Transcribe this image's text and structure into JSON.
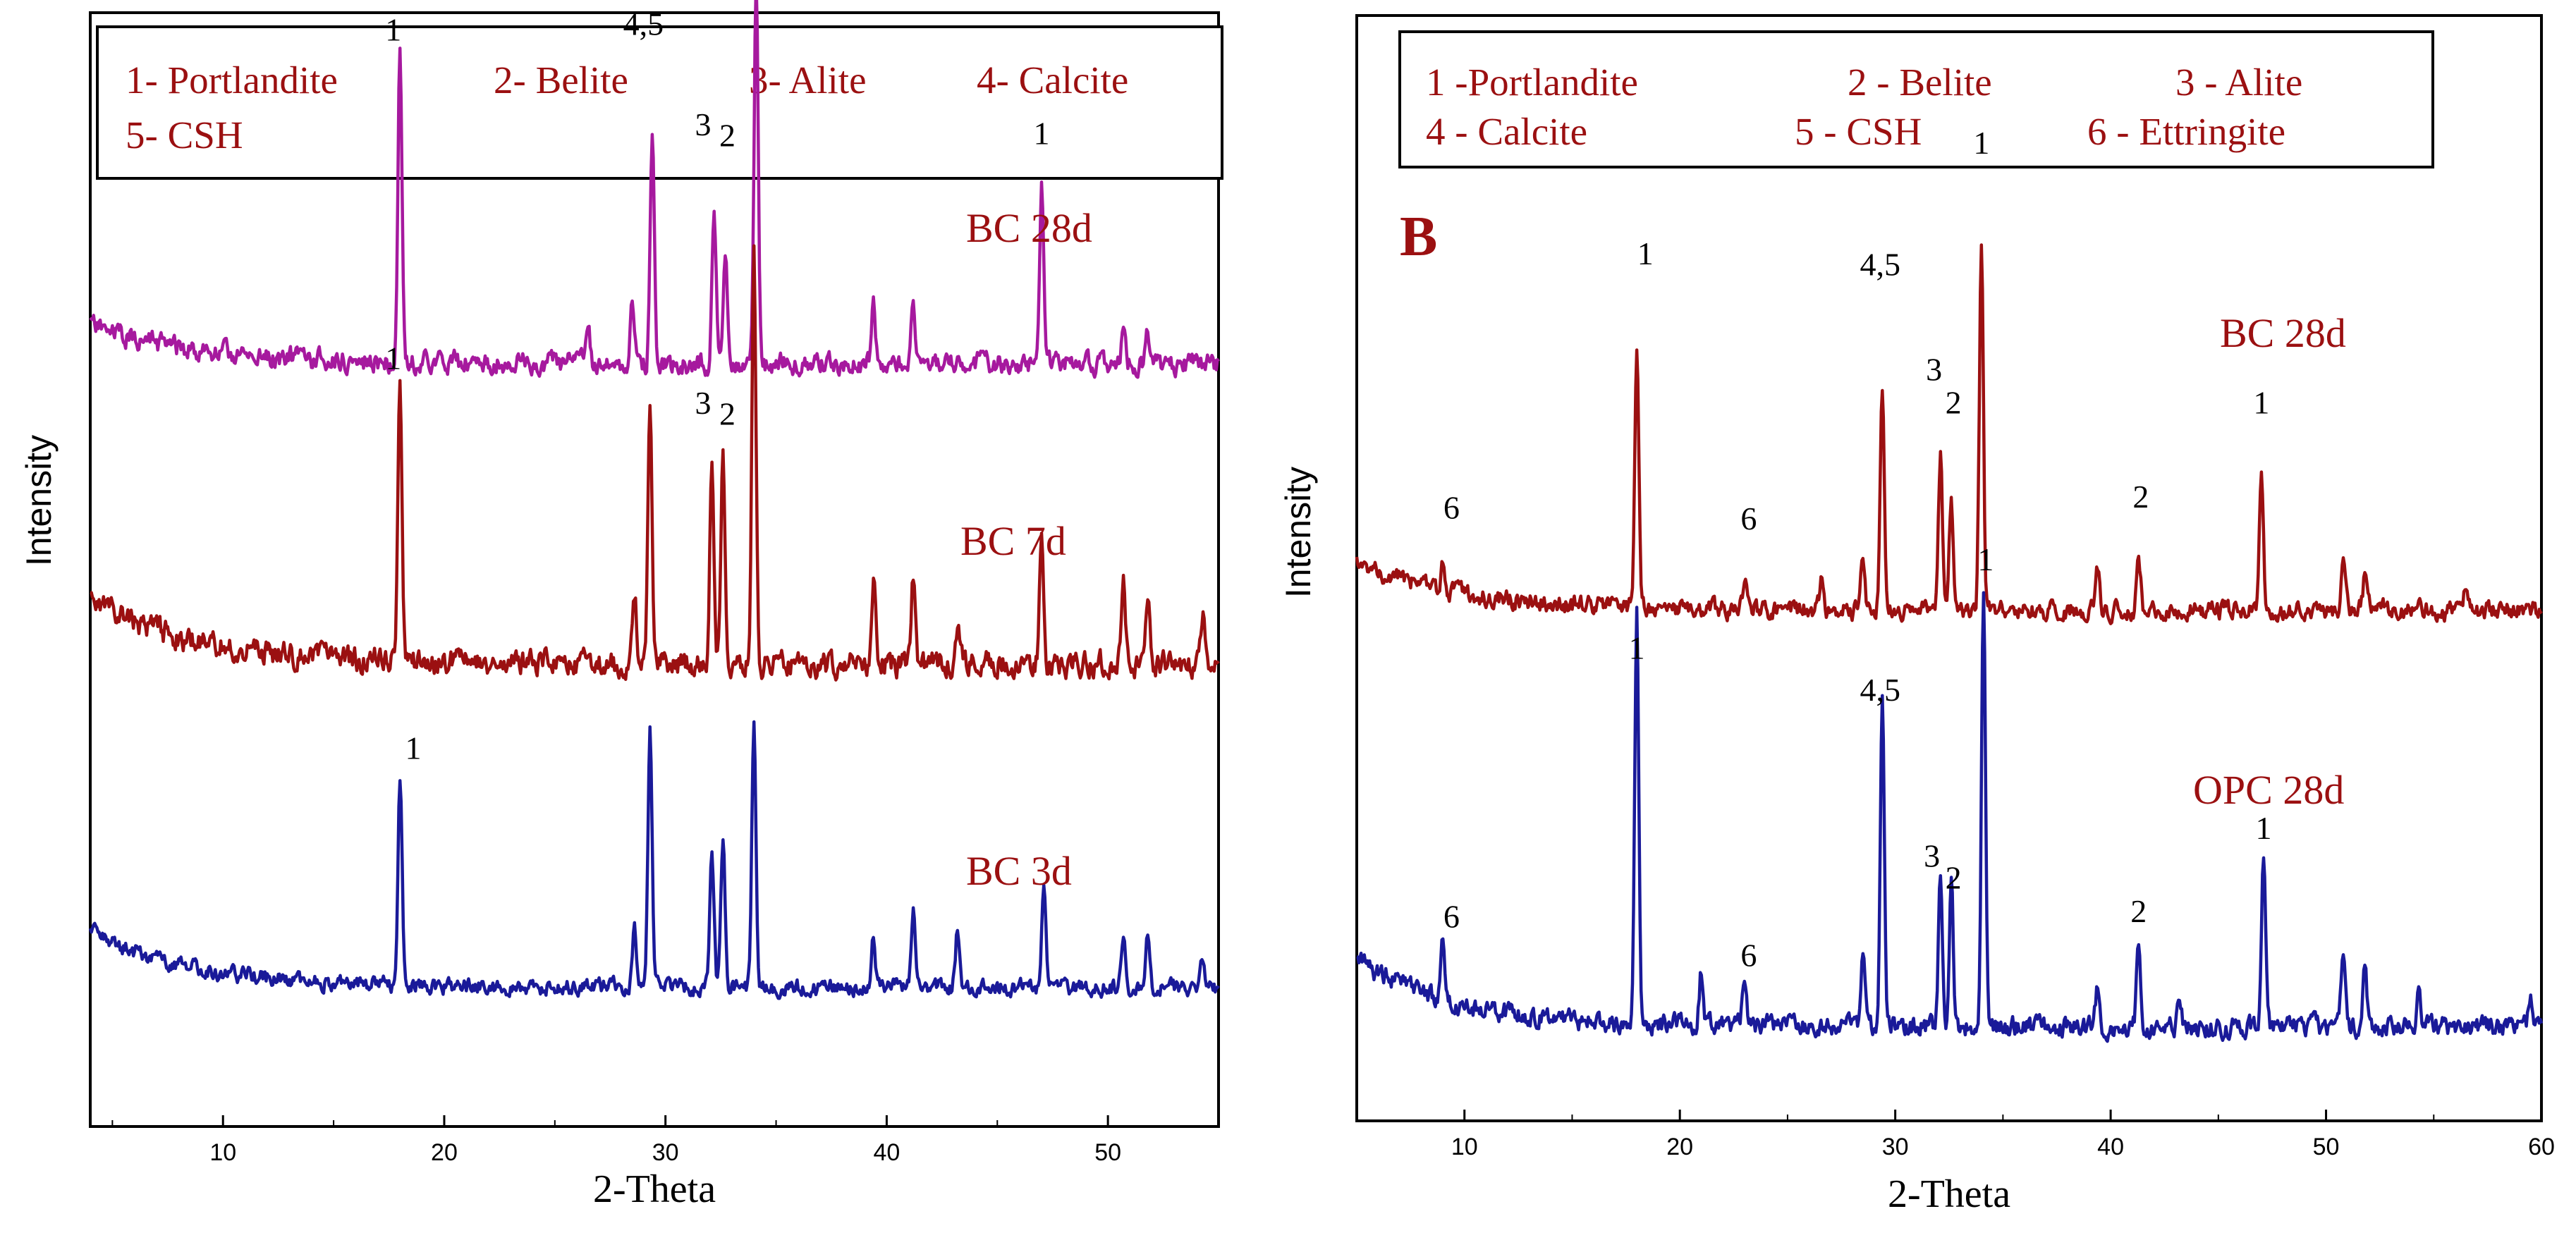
{
  "colors": {
    "purple": "#A6199E",
    "red": "#9B1011",
    "blue": "#1A1A99",
    "text_red": "#9B1011",
    "black": "#000000"
  },
  "chart_data": [
    {
      "type": "line",
      "panel": "A",
      "title": "",
      "xlabel": "2-Theta",
      "ylabel": "Intensity",
      "xlim": [
        4,
        55
      ],
      "xticks": [
        10,
        20,
        30,
        40,
        50
      ],
      "xtick_labels": [
        "10",
        "20",
        "30",
        "40",
        "50"
      ],
      "legend": [
        "1- Portlandite",
        "2- Belite",
        "3- Alite",
        "4- Calcite",
        "5- CSH"
      ],
      "series": [
        {
          "name": "BC 28d",
          "color": "purple",
          "baseline": 0.315,
          "start_rise": 0.035,
          "noise": 0.017,
          "seed": 11,
          "peaks": [
            [
              18.0,
              0.28
            ],
            [
              26.5,
              0.04
            ],
            [
              28.5,
              0.05
            ],
            [
              29.4,
              0.21
            ],
            [
              32.2,
              0.14
            ],
            [
              32.7,
              0.11
            ],
            [
              34.1,
              0.34
            ],
            [
              39.4,
              0.05
            ],
            [
              41.2,
              0.055
            ],
            [
              47.0,
              0.16
            ],
            [
              50.7,
              0.04
            ],
            [
              51.8,
              0.025
            ]
          ]
        },
        {
          "name": "BC 7d",
          "color": "red",
          "baseline": 0.585,
          "start_rise": 0.06,
          "noise": 0.02,
          "seed": 23,
          "peaks": [
            [
              18.0,
              0.25
            ],
            [
              28.6,
              0.06
            ],
            [
              29.3,
              0.22
            ],
            [
              32.1,
              0.18
            ],
            [
              32.6,
              0.19
            ],
            [
              34.0,
              0.37
            ],
            [
              39.4,
              0.08
            ],
            [
              41.2,
              0.08
            ],
            [
              43.2,
              0.03
            ],
            [
              47.0,
              0.12
            ],
            [
              50.7,
              0.08
            ],
            [
              51.8,
              0.05
            ],
            [
              54.3,
              0.04
            ]
          ]
        },
        {
          "name": "BC 3d",
          "color": "blue",
          "baseline": 0.875,
          "start_rise": 0.05,
          "noise": 0.013,
          "seed": 37,
          "peaks": [
            [
              18.0,
              0.19
            ],
            [
              28.6,
              0.05
            ],
            [
              29.3,
              0.23
            ],
            [
              32.1,
              0.12
            ],
            [
              32.6,
              0.13
            ],
            [
              34.0,
              0.24
            ],
            [
              39.4,
              0.05
            ],
            [
              41.2,
              0.07
            ],
            [
              43.2,
              0.05
            ],
            [
              47.1,
              0.1
            ],
            [
              50.7,
              0.05
            ],
            [
              51.8,
              0.05
            ],
            [
              54.3,
              0.025
            ]
          ]
        }
      ],
      "peak_labels": [
        {
          "text": "1",
          "x": 17.7,
          "y": 0.025,
          "series": "BC 28d"
        },
        {
          "text": "4,5",
          "x": 29.0,
          "y": 0.02,
          "series": "BC 28d"
        },
        {
          "text": "3",
          "x": 31.7,
          "y": 0.11,
          "series": "BC 28d"
        },
        {
          "text": "2",
          "x": 32.8,
          "y": 0.12,
          "series": "BC 28d"
        },
        {
          "text": "1",
          "x": 47.0,
          "y": 0.118,
          "series": "BC 28d"
        },
        {
          "text": "1",
          "x": 17.7,
          "y": 0.32,
          "series": "BC 7d"
        },
        {
          "text": "3",
          "x": 31.7,
          "y": 0.36,
          "series": "BC 7d"
        },
        {
          "text": "2",
          "x": 32.8,
          "y": 0.37,
          "series": "BC 7d"
        },
        {
          "text": "1",
          "x": 18.6,
          "y": 0.67,
          "series": "BC 3d"
        }
      ]
    },
    {
      "type": "line",
      "panel": "B",
      "title": "B",
      "xlabel": "2-Theta",
      "ylabel": "Intensity",
      "xlim": [
        5,
        60
      ],
      "xticks": [
        10,
        20,
        30,
        40,
        50,
        60
      ],
      "xtick_labels": [
        "10",
        "20",
        "30",
        "40",
        "50",
        "60"
      ],
      "legend": [
        "1 -Portlandite",
        "2 - Belite",
        "3 - Alite",
        "4 - Calcite",
        "5 - CSH",
        "6 - Ettringite"
      ],
      "series": [
        {
          "name": "BC 28d",
          "color": "red",
          "baseline": 0.538,
          "start_rise": 0.045,
          "noise": 0.015,
          "seed": 51,
          "peaks": [
            [
              9.0,
              0.025
            ],
            [
              18.0,
              0.24
            ],
            [
              23.0,
              0.025
            ],
            [
              26.6,
              0.03
            ],
            [
              28.5,
              0.05
            ],
            [
              29.4,
              0.2
            ],
            [
              32.1,
              0.14
            ],
            [
              32.6,
              0.1
            ],
            [
              34.0,
              0.33
            ],
            [
              39.4,
              0.04
            ],
            [
              41.3,
              0.045
            ],
            [
              47.0,
              0.13
            ],
            [
              50.8,
              0.04
            ],
            [
              51.8,
              0.03
            ],
            [
              56.5,
              0.025
            ]
          ]
        },
        {
          "name": "OPC 28d",
          "color": "blue",
          "baseline": 0.915,
          "start_rise": 0.06,
          "noise": 0.016,
          "seed": 67,
          "peaks": [
            [
              9.0,
              0.06
            ],
            [
              18.0,
              0.37
            ],
            [
              21.0,
              0.05
            ],
            [
              23.0,
              0.04
            ],
            [
              28.5,
              0.06
            ],
            [
              29.4,
              0.3
            ],
            [
              32.1,
              0.14
            ],
            [
              32.6,
              0.13
            ],
            [
              34.1,
              0.4
            ],
            [
              39.4,
              0.04
            ],
            [
              41.3,
              0.08
            ],
            [
              43.2,
              0.03
            ],
            [
              47.1,
              0.15
            ],
            [
              50.8,
              0.07
            ],
            [
              51.8,
              0.05
            ],
            [
              54.3,
              0.04
            ],
            [
              59.5,
              0.03
            ]
          ]
        }
      ],
      "peak_labels": [
        {
          "text": "6",
          "x": 9.4,
          "y": 0.455,
          "series": "BC 28d"
        },
        {
          "text": "1",
          "x": 18.4,
          "y": 0.225,
          "series": "BC 28d"
        },
        {
          "text": "6",
          "x": 23.2,
          "y": 0.465,
          "series": "BC 28d"
        },
        {
          "text": "4,5",
          "x": 29.3,
          "y": 0.235,
          "series": "BC 28d"
        },
        {
          "text": "3",
          "x": 31.8,
          "y": 0.33,
          "series": "BC 28d"
        },
        {
          "text": "2",
          "x": 32.7,
          "y": 0.36,
          "series": "BC 28d"
        },
        {
          "text": "1",
          "x": 34.0,
          "y": 0.125,
          "series": "BC 28d"
        },
        {
          "text": "2",
          "x": 41.4,
          "y": 0.445,
          "series": "BC 28d"
        },
        {
          "text": "1",
          "x": 47.0,
          "y": 0.36,
          "series": "BC 28d"
        },
        {
          "text": "6",
          "x": 9.4,
          "y": 0.825,
          "series": "OPC 28d"
        },
        {
          "text": "1",
          "x": 18.0,
          "y": 0.582,
          "series": "OPC 28d"
        },
        {
          "text": "6",
          "x": 23.2,
          "y": 0.86,
          "series": "OPC 28d"
        },
        {
          "text": "4,5",
          "x": 29.3,
          "y": 0.62,
          "series": "OPC 28d"
        },
        {
          "text": "1",
          "x": 34.2,
          "y": 0.502,
          "series": "OPC 28d"
        },
        {
          "text": "3",
          "x": 31.7,
          "y": 0.77,
          "series": "OPC 28d"
        },
        {
          "text": "2",
          "x": 32.7,
          "y": 0.79,
          "series": "OPC 28d"
        },
        {
          "text": "2",
          "x": 41.3,
          "y": 0.82,
          "series": "OPC 28d"
        },
        {
          "text": "1",
          "x": 47.1,
          "y": 0.745,
          "series": "OPC 28d"
        }
      ]
    }
  ]
}
